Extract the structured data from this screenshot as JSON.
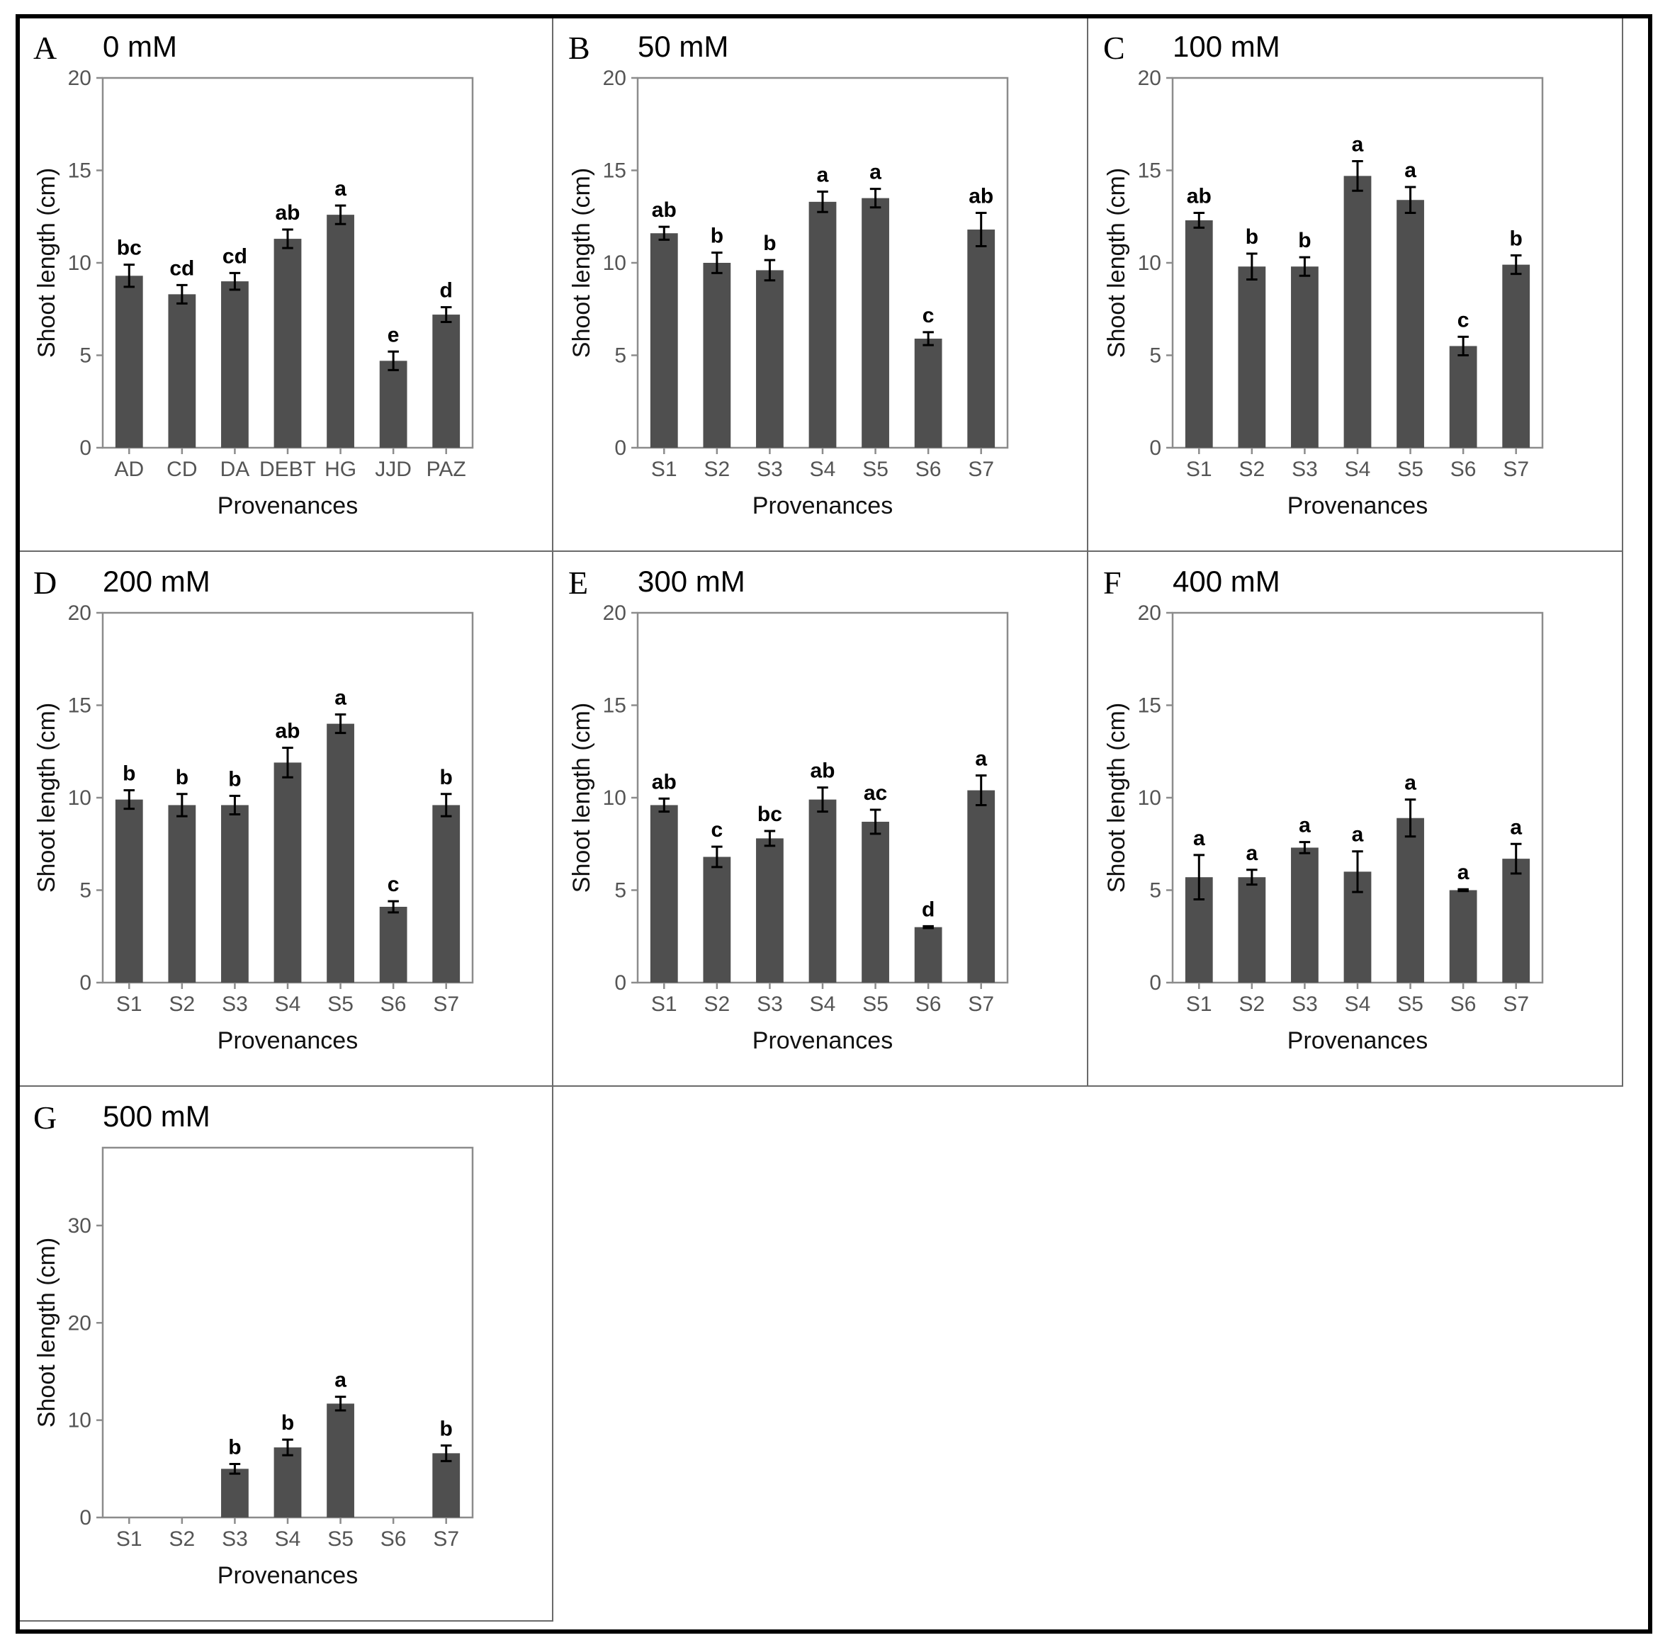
{
  "figure": {
    "ylabel": "Shoot length (cm)",
    "xlabel": "Provenances"
  },
  "chart_data": [
    {
      "type": "bar",
      "panel": "A",
      "title": "0 mM",
      "categories": [
        "AD",
        "CD",
        "DA",
        "DEBT",
        "HG",
        "JJD",
        "PAZ"
      ],
      "values": [
        9.3,
        8.3,
        9.0,
        11.3,
        12.6,
        4.7,
        7.2
      ],
      "errors": [
        0.6,
        0.5,
        0.45,
        0.5,
        0.5,
        0.5,
        0.4
      ],
      "letters": [
        "bc",
        "cd",
        "cd",
        "ab",
        "a",
        "e",
        "d"
      ],
      "ylim": [
        0,
        20
      ],
      "yticks": [
        0,
        5,
        10,
        15,
        20
      ],
      "xlabel": "Provenances",
      "ylabel": "Shoot length (cm)"
    },
    {
      "type": "bar",
      "panel": "B",
      "title": "50 mM",
      "categories": [
        "S1",
        "S2",
        "S3",
        "S4",
        "S5",
        "S6",
        "S7"
      ],
      "values": [
        11.6,
        10.0,
        9.6,
        13.3,
        13.5,
        5.9,
        11.8
      ],
      "errors": [
        0.35,
        0.55,
        0.55,
        0.55,
        0.5,
        0.35,
        0.9
      ],
      "letters": [
        "ab",
        "b",
        "b",
        "a",
        "a",
        "c",
        "ab"
      ],
      "ylim": [
        0,
        20
      ],
      "yticks": [
        0,
        5,
        10,
        15,
        20
      ],
      "xlabel": "Provenances",
      "ylabel": "Shoot length (cm)"
    },
    {
      "type": "bar",
      "panel": "C",
      "title": "100 mM",
      "categories": [
        "S1",
        "S2",
        "S3",
        "S4",
        "S5",
        "S6",
        "S7"
      ],
      "values": [
        12.3,
        9.8,
        9.8,
        14.7,
        13.4,
        5.5,
        9.9
      ],
      "errors": [
        0.4,
        0.7,
        0.5,
        0.8,
        0.7,
        0.5,
        0.5
      ],
      "letters": [
        "ab",
        "b",
        "b",
        "a",
        "a",
        "c",
        "b"
      ],
      "ylim": [
        0,
        20
      ],
      "yticks": [
        0,
        5,
        10,
        15,
        20
      ],
      "xlabel": "Provenances",
      "ylabel": "Shoot length (cm)"
    },
    {
      "type": "bar",
      "panel": "D",
      "title": "200 mM",
      "categories": [
        "S1",
        "S2",
        "S3",
        "S4",
        "S5",
        "S6",
        "S7"
      ],
      "values": [
        9.9,
        9.6,
        9.6,
        11.9,
        14.0,
        4.1,
        9.6
      ],
      "errors": [
        0.5,
        0.6,
        0.5,
        0.8,
        0.5,
        0.3,
        0.6
      ],
      "letters": [
        "b",
        "b",
        "b",
        "ab",
        "a",
        "c",
        "b"
      ],
      "ylim": [
        0,
        20
      ],
      "yticks": [
        0,
        5,
        10,
        15,
        20
      ],
      "xlabel": "Provenances",
      "ylabel": "Shoot length (cm)"
    },
    {
      "type": "bar",
      "panel": "E",
      "title": "300 mM",
      "categories": [
        "S1",
        "S2",
        "S3",
        "S4",
        "S5",
        "S6",
        "S7"
      ],
      "values": [
        9.6,
        6.8,
        7.8,
        9.9,
        8.7,
        3.0,
        10.4
      ],
      "errors": [
        0.35,
        0.55,
        0.4,
        0.65,
        0.65,
        0.05,
        0.8
      ],
      "letters": [
        "ab",
        "c",
        "bc",
        "ab",
        "ac",
        "d",
        "a"
      ],
      "ylim": [
        0,
        20
      ],
      "yticks": [
        0,
        5,
        10,
        15,
        20
      ],
      "xlabel": "Provenances",
      "ylabel": "Shoot length (cm)"
    },
    {
      "type": "bar",
      "panel": "F",
      "title": "400 mM",
      "categories": [
        "S1",
        "S2",
        "S3",
        "S4",
        "S5",
        "S6",
        "S7"
      ],
      "values": [
        5.7,
        5.7,
        7.3,
        6.0,
        8.9,
        5.0,
        6.7
      ],
      "errors": [
        1.2,
        0.4,
        0.3,
        1.1,
        1.0,
        0.05,
        0.8
      ],
      "letters": [
        "a",
        "a",
        "a",
        "a",
        "a",
        "a",
        "a"
      ],
      "ylim": [
        0,
        20
      ],
      "yticks": [
        0,
        5,
        10,
        15,
        20
      ],
      "xlabel": "Provenances",
      "ylabel": "Shoot length (cm)"
    },
    {
      "type": "bar",
      "panel": "G",
      "title": "500 mM",
      "categories": [
        "S1",
        "S2",
        "S3",
        "S4",
        "S5",
        "S6",
        "S7"
      ],
      "values": [
        0,
        0,
        5.0,
        7.2,
        11.7,
        0,
        6.6
      ],
      "errors": [
        0,
        0,
        0.5,
        0.8,
        0.7,
        0,
        0.8
      ],
      "letters": [
        "",
        "",
        "b",
        "b",
        "a",
        "",
        "b"
      ],
      "ylim": [
        0,
        38
      ],
      "yticks": [
        0,
        10,
        20,
        30
      ],
      "xlabel": "Provenances",
      "ylabel": "Shoot length (cm)"
    }
  ]
}
